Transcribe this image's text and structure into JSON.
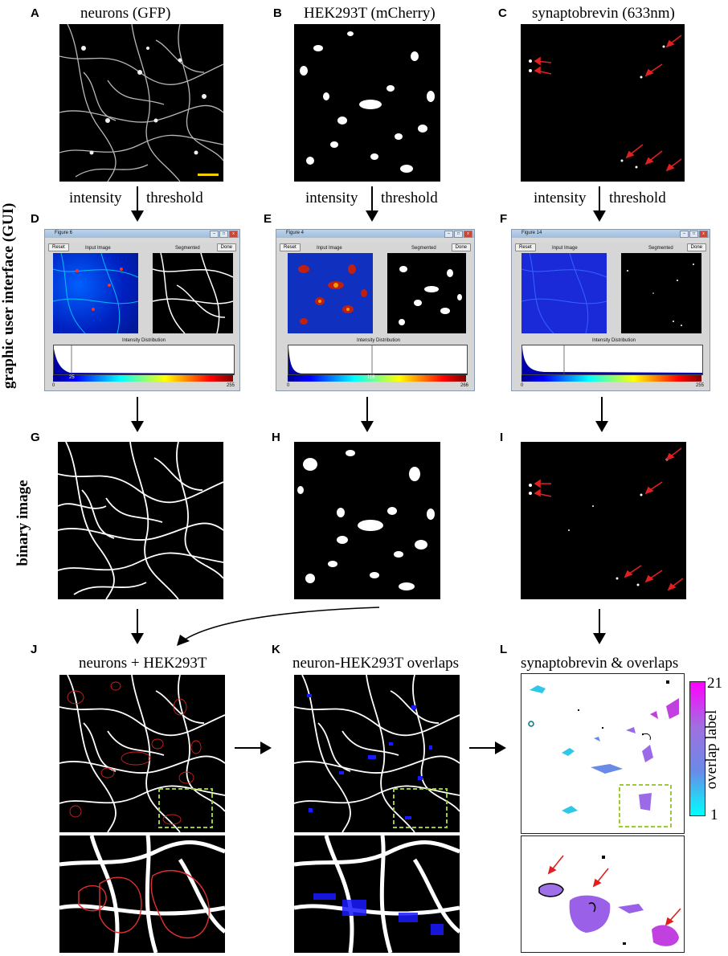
{
  "panels": {
    "A": {
      "letter": "A",
      "title": "neurons (GFP)"
    },
    "B": {
      "letter": "B",
      "title": "HEK293T (mCherry)"
    },
    "C": {
      "letter": "C",
      "title": "synaptobrevin (633nm)"
    },
    "D": {
      "letter": "D"
    },
    "E": {
      "letter": "E"
    },
    "F": {
      "letter": "F"
    },
    "G": {
      "letter": "G"
    },
    "H": {
      "letter": "H"
    },
    "I": {
      "letter": "I"
    },
    "J": {
      "letter": "J",
      "title": "neurons + HEK293T"
    },
    "K": {
      "letter": "K",
      "title": "neuron-HEK293T overlaps"
    },
    "L": {
      "letter": "L",
      "title": "synaptobrevin & overlaps"
    }
  },
  "flow": {
    "intensity": "intensity",
    "threshold": "threshold"
  },
  "row_labels": {
    "gui": "graphic user interface (GUI)",
    "binary": "binary image"
  },
  "gui_windows": [
    {
      "title": "Figure 6",
      "threshold": "25",
      "max": "255",
      "min": "0"
    },
    {
      "title": "Figure 4",
      "threshold": "118",
      "max": "266",
      "min": "0"
    },
    {
      "title": "Figure 14",
      "threshold": "",
      "max": "255",
      "min": "0"
    }
  ],
  "gui_common": {
    "reset": "Reset",
    "done": "Done",
    "input_image": "Input Image",
    "segmented": "Segmented",
    "intensity_distribution": "Intensity Distribution"
  },
  "colorbar": {
    "label": "overlap label",
    "max": "21",
    "min": "1",
    "top_color": "#ff00ff",
    "bottom_color": "#00ffff"
  },
  "colors": {
    "arrow_red": "#e02020",
    "scale_bar": "#f2d000",
    "roi_box": "#9acd32",
    "hek_outline": "#d02020",
    "overlap_blue": "#1a1aff"
  }
}
